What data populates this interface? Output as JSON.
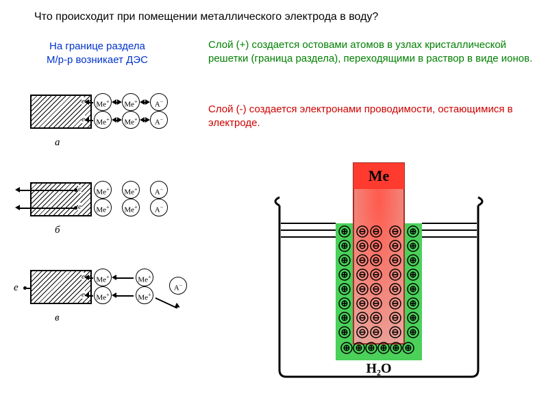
{
  "title": "Что происходит при помещении металлического электрода в воду?",
  "sub_left": "На границе раздела\nМ/р-р возникает ДЭС",
  "sub_right": "Слой (+) создается остовами атомов в узлах кристаллической решетки (граница раздела), переходящими в раствор в виде ионов.",
  "red_text": "Слой (-) создается электронами проводимости, остающимися в электроде.",
  "labels": {
    "a": "а",
    "b": "б",
    "v": "в",
    "e": "е",
    "e_arrow": "e",
    "me_cation": "Me",
    "a_anion": "A"
  },
  "beaker": {
    "me_label": "Me",
    "h2o": "Н₂O",
    "colors": {
      "metal_top": "#ff5a4d",
      "metal_bot": "#e9a79e",
      "ion_layer": "#4bd05a",
      "beaker_stroke": "#000000",
      "plus": "#000000",
      "minus": "#000000",
      "water": "#ffffff"
    },
    "rows": 8,
    "cols_minus": 2
  },
  "styling": {
    "title_color": "#000000",
    "blue": "#0033cc",
    "green": "#008000",
    "red": "#cc0000",
    "font_family": "Arial",
    "title_fontsize": 16,
    "body_fontsize": 15
  }
}
